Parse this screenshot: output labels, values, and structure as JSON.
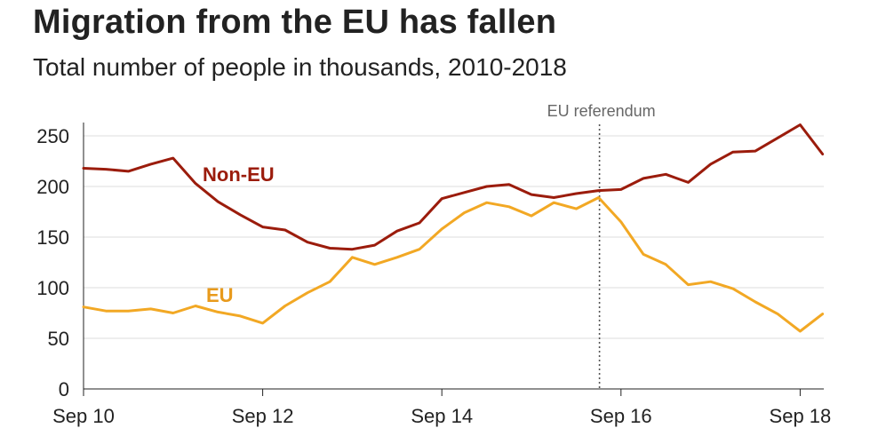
{
  "header": {
    "title": "Migration from the EU has fallen",
    "subtitle": "Total number of people in thousands, 2010-2018"
  },
  "chart_data": {
    "type": "line",
    "x_tick_labels": [
      "Sep 10",
      "Sep 12",
      "Sep 14",
      "Sep 16",
      "Sep 18"
    ],
    "y_tick_labels": [
      "0",
      "50",
      "100",
      "150",
      "200",
      "250"
    ],
    "ylim": [
      0,
      250
    ],
    "grid": true,
    "legend": "inline",
    "annotation": {
      "label": "EU referendum",
      "x": "Jun 16"
    },
    "x": [
      "Sep 10",
      "Dec 10",
      "Mar 11",
      "Jun 11",
      "Sep 11",
      "Dec 11",
      "Mar 12",
      "Jun 12",
      "Sep 12",
      "Dec 12",
      "Mar 13",
      "Jun 13",
      "Sep 13",
      "Dec 13",
      "Mar 14",
      "Jun 14",
      "Sep 14",
      "Dec 14",
      "Mar 15",
      "Jun 15",
      "Sep 15",
      "Dec 15",
      "Mar 16",
      "Jun 16",
      "Sep 16",
      "Dec 16",
      "Mar 17",
      "Jun 17",
      "Sep 17",
      "Dec 17",
      "Mar 18",
      "Jun 18",
      "Sep 18",
      "Dec 18"
    ],
    "series": [
      {
        "name": "Non-EU",
        "color": "#9b1c0c",
        "values": [
          218,
          217,
          215,
          222,
          228,
          203,
          185,
          172,
          160,
          157,
          145,
          139,
          138,
          142,
          156,
          164,
          188,
          194,
          200,
          202,
          192,
          189,
          193,
          196,
          197,
          208,
          212,
          204,
          222,
          234,
          235,
          248,
          261,
          232
        ]
      },
      {
        "name": "EU",
        "color": "#f2a824",
        "values": [
          81,
          77,
          77,
          79,
          75,
          82,
          76,
          72,
          65,
          82,
          95,
          106,
          130,
          123,
          130,
          138,
          158,
          174,
          184,
          180,
          171,
          184,
          178,
          189,
          165,
          133,
          123,
          103,
          106,
          99,
          86,
          74,
          57,
          74
        ]
      }
    ]
  }
}
